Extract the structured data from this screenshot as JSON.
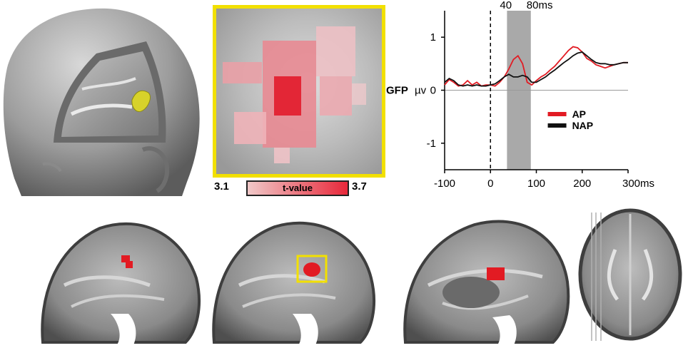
{
  "colorbar": {
    "min": "3.1",
    "max": "3.7",
    "label": "t-value",
    "color_low": "#f0c8c8",
    "color_high": "#e8283a"
  },
  "colors": {
    "highlight_frame": "#f2e000",
    "activation": "#e21b23",
    "ap_line": "#e21b23",
    "nap_line": "#111111",
    "window_shade": "#a9a9a9"
  },
  "chart_data": {
    "type": "line",
    "ylabel": "GFP",
    "yunit": "µv",
    "xunit": "ms",
    "xlim": [
      -100,
      300
    ],
    "ylim": [
      -1.5,
      1.5
    ],
    "xticks": [
      -100,
      0,
      100,
      200,
      300
    ],
    "xtick_labels": [
      "-100",
      "0",
      "100",
      "200",
      "300ms"
    ],
    "yticks": [
      1,
      0,
      -1
    ],
    "ytick_labels": [
      "1",
      "0",
      "-1"
    ],
    "onset_marker_x": 0,
    "shaded_window": {
      "x0": 36,
      "x1": 88,
      "labels": [
        "40",
        "80ms"
      ]
    },
    "legend": {
      "placement": "center-right"
    },
    "x": [
      -100,
      -90,
      -80,
      -70,
      -60,
      -50,
      -40,
      -30,
      -20,
      -10,
      0,
      10,
      20,
      30,
      40,
      50,
      60,
      70,
      80,
      90,
      100,
      110,
      120,
      130,
      140,
      150,
      160,
      170,
      180,
      190,
      200,
      210,
      220,
      230,
      240,
      250,
      260,
      270,
      280,
      290,
      300
    ],
    "series": [
      {
        "name": "AP",
        "color": "#e21b23",
        "values": [
          0.1,
          0.2,
          0.15,
          0.08,
          0.1,
          0.18,
          0.1,
          0.15,
          0.08,
          0.1,
          0.1,
          0.08,
          0.15,
          0.25,
          0.4,
          0.58,
          0.65,
          0.5,
          0.15,
          0.1,
          0.18,
          0.25,
          0.3,
          0.38,
          0.45,
          0.55,
          0.65,
          0.75,
          0.82,
          0.8,
          0.72,
          0.6,
          0.55,
          0.48,
          0.45,
          0.42,
          0.45,
          0.48,
          0.5,
          0.52,
          0.52
        ]
      },
      {
        "name": "NAP",
        "color": "#111111",
        "values": [
          0.15,
          0.22,
          0.18,
          0.1,
          0.08,
          0.1,
          0.08,
          0.1,
          0.08,
          0.08,
          0.1,
          0.12,
          0.18,
          0.25,
          0.3,
          0.25,
          0.25,
          0.28,
          0.25,
          0.15,
          0.15,
          0.2,
          0.25,
          0.32,
          0.38,
          0.45,
          0.52,
          0.58,
          0.65,
          0.7,
          0.72,
          0.65,
          0.58,
          0.52,
          0.5,
          0.5,
          0.48,
          0.48,
          0.5,
          0.52,
          0.52
        ]
      }
    ]
  }
}
